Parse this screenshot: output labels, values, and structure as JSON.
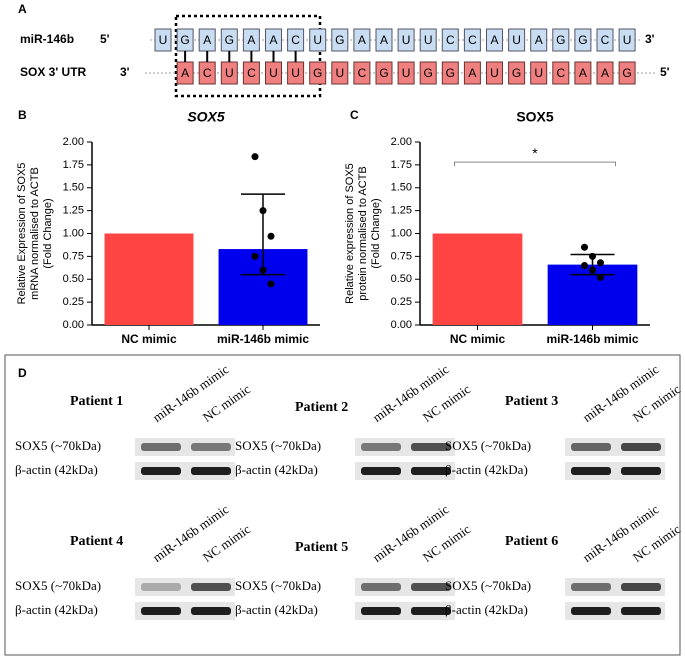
{
  "panel_labels": [
    "A",
    "B",
    "C",
    "D"
  ],
  "sequence": {
    "mir_name": "miR-146b",
    "mir_left": "5'",
    "mir_right": "3'",
    "mir_letters": [
      "U",
      "G",
      "A",
      "G",
      "A",
      "A",
      "C",
      "U",
      "G",
      "A",
      "A",
      "U",
      "U",
      "C",
      "C",
      "A",
      "U",
      "A",
      "G",
      "G",
      "C",
      "U"
    ],
    "utr_name": "SOX 3' UTR",
    "utr_left": "3'",
    "utr_right": "5'",
    "utr_letters": [
      "A",
      "C",
      "U",
      "C",
      "U",
      "U",
      "G",
      "U",
      "C",
      "G",
      "U",
      "G",
      "G",
      "A",
      "U",
      "G",
      "U",
      "C",
      "A",
      "A",
      "G"
    ]
  },
  "chart_data": [
    {
      "type": "bar",
      "title": "SOX5",
      "title_italic": true,
      "ylabel": [
        "Relative Expression of SOX5",
        "mRNA normalised to ACTB",
        "(Fold Change)"
      ],
      "categories": [
        "NC mimic",
        "miR-146b mimic"
      ],
      "values": [
        1.0,
        0.83
      ],
      "colors": [
        "#ff4444",
        "#0000ee"
      ],
      "error_low": [
        null,
        0.55
      ],
      "error_high": [
        null,
        1.43
      ],
      "points": [
        [],
        [
          1.84,
          1.25,
          0.97,
          0.75,
          0.6,
          0.45
        ]
      ],
      "ylim": [
        0,
        2
      ],
      "yticks": [
        {
          "value": 0,
          "label": "0.00"
        },
        {
          "value": 0.25,
          "label": "0.25"
        },
        {
          "value": 0.5,
          "label": "0.50"
        },
        {
          "value": 0.75,
          "label": "0.75"
        },
        {
          "value": 1,
          "label": "1.00"
        },
        {
          "value": 1.25,
          "label": "1.25"
        },
        {
          "value": 1.5,
          "label": "1.50"
        },
        {
          "value": 1.75,
          "label": "1.75"
        },
        {
          "value": 2,
          "label": "2.00"
        }
      ]
    },
    {
      "type": "bar",
      "title": "SOX5",
      "title_italic": false,
      "ylabel": [
        "Relative expression of SOX5",
        "protein normalised to ACTB",
        "(Fold Change)"
      ],
      "categories": [
        "NC mimic",
        "miR-146b mimic"
      ],
      "values": [
        1.0,
        0.66
      ],
      "colors": [
        "#ff4444",
        "#0000ee"
      ],
      "error_low": [
        null,
        0.55
      ],
      "error_high": [
        null,
        0.77
      ],
      "points": [
        [],
        [
          0.85,
          0.75,
          0.68,
          0.65,
          0.6,
          0.52
        ]
      ],
      "significance": "*",
      "ylim": [
        0,
        2
      ],
      "yticks": [
        {
          "value": 0,
          "label": "0.00"
        },
        {
          "value": 0.25,
          "label": "0.25"
        },
        {
          "value": 0.5,
          "label": "0.50"
        },
        {
          "value": 0.75,
          "label": "0.75"
        },
        {
          "value": 1,
          "label": "1.00"
        },
        {
          "value": 1.25,
          "label": "1.25"
        },
        {
          "value": 1.5,
          "label": "1.50"
        },
        {
          "value": 1.75,
          "label": "1.75"
        },
        {
          "value": 2,
          "label": "2.00"
        }
      ]
    }
  ],
  "blots": [
    {
      "name": "Patient 1",
      "lanes": [
        "miR-146b mimic",
        "NC mimic"
      ],
      "rows": [
        "SOX5 (~70kDa)",
        "β-actin (42kDa)"
      ]
    },
    {
      "name": "Patient 2",
      "lanes": [
        "miR-146b mimic",
        "NC mimic"
      ],
      "rows": [
        "SOX5 (~70kDa)",
        "β-actin (42kDa)"
      ]
    },
    {
      "name": "Patient 3",
      "lanes": [
        "miR-146b mimic",
        "NC mimic"
      ],
      "rows": [
        "SOX5 (~70kDa)",
        "β-actin (42kDa)"
      ]
    },
    {
      "name": "Patient 4",
      "lanes": [
        "miR-146b mimic",
        "NC mimic"
      ],
      "rows": [
        "SOX5 (~70kDa)",
        "β-actin (42kDa)"
      ]
    },
    {
      "name": "Patient 5",
      "lanes": [
        "miR-146b mimic",
        "NC mimic"
      ],
      "rows": [
        "SOX5 (~70kDa)",
        "β-actin (42kDa)"
      ]
    },
    {
      "name": "Patient 6",
      "lanes": [
        "miR-146b mimic",
        "NC mimic"
      ],
      "rows": [
        "SOX5 (~70kDa)",
        "β-actin (42kDa)"
      ]
    }
  ]
}
